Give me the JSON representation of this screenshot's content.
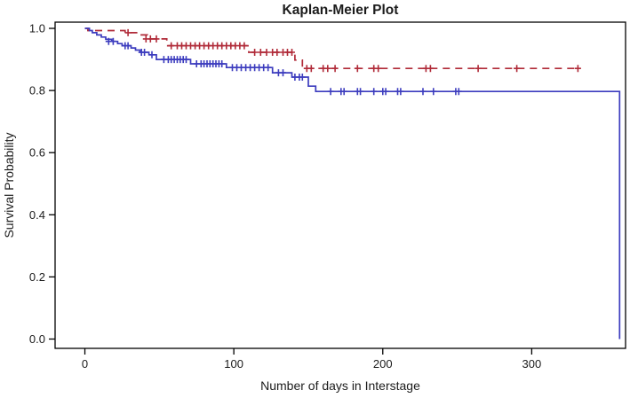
{
  "chart_data": {
    "type": "line",
    "subtype": "kaplan-meier-step",
    "title": "Kaplan-Meier Plot",
    "xlabel": "Number of days in Interstage",
    "ylabel": "Survival Probability",
    "xlim": [
      -20,
      363
    ],
    "ylim": [
      -0.03,
      1.02
    ],
    "xtick_values": [
      0,
      100,
      200,
      300
    ],
    "xtick_labels": [
      "0",
      "100",
      "200",
      "300"
    ],
    "ytick_values": [
      0.0,
      0.2,
      0.4,
      0.6,
      0.8,
      1.0
    ],
    "ytick_labels": [
      "0.0",
      "0.2",
      "0.4",
      "0.6",
      "0.8",
      "1.0"
    ],
    "grid": false,
    "legend": "none",
    "frame_color": "#000000",
    "series": [
      {
        "id": "group-red",
        "line_style": "dashed",
        "color": "#b02a38",
        "steps": [
          [
            0,
            1.0
          ],
          [
            2,
            0.993
          ],
          [
            27,
            0.986
          ],
          [
            36,
            0.979
          ],
          [
            42,
            0.966
          ],
          [
            55,
            0.944
          ],
          [
            110,
            0.923
          ],
          [
            141,
            0.898
          ],
          [
            146,
            0.871
          ],
          [
            331,
            0.871
          ]
        ],
        "censors": [
          [
            29,
            0.986
          ],
          [
            41,
            0.966
          ],
          [
            44,
            0.966
          ],
          [
            48,
            0.966
          ],
          [
            58,
            0.944
          ],
          [
            62,
            0.944
          ],
          [
            65,
            0.944
          ],
          [
            68,
            0.944
          ],
          [
            71,
            0.944
          ],
          [
            74,
            0.944
          ],
          [
            77,
            0.944
          ],
          [
            80,
            0.944
          ],
          [
            83,
            0.944
          ],
          [
            86,
            0.944
          ],
          [
            89,
            0.944
          ],
          [
            92,
            0.944
          ],
          [
            95,
            0.944
          ],
          [
            98,
            0.944
          ],
          [
            101,
            0.944
          ],
          [
            104,
            0.944
          ],
          [
            107,
            0.944
          ],
          [
            114,
            0.923
          ],
          [
            118,
            0.923
          ],
          [
            122,
            0.923
          ],
          [
            126,
            0.923
          ],
          [
            129,
            0.923
          ],
          [
            133,
            0.923
          ],
          [
            136,
            0.923
          ],
          [
            139,
            0.923
          ],
          [
            149,
            0.871
          ],
          [
            152,
            0.871
          ],
          [
            160,
            0.871
          ],
          [
            163,
            0.871
          ],
          [
            168,
            0.871
          ],
          [
            183,
            0.871
          ],
          [
            194,
            0.871
          ],
          [
            197,
            0.871
          ],
          [
            229,
            0.871
          ],
          [
            232,
            0.871
          ],
          [
            264,
            0.871
          ],
          [
            290,
            0.871
          ],
          [
            331,
            0.871
          ]
        ]
      },
      {
        "id": "group-blue",
        "line_style": "solid",
        "color": "#3c3cbe",
        "steps": [
          [
            0,
            1.0
          ],
          [
            3,
            0.993
          ],
          [
            5,
            0.986
          ],
          [
            8,
            0.979
          ],
          [
            11,
            0.972
          ],
          [
            14,
            0.965
          ],
          [
            18,
            0.958
          ],
          [
            22,
            0.951
          ],
          [
            25,
            0.944
          ],
          [
            31,
            0.937
          ],
          [
            34,
            0.93
          ],
          [
            37,
            0.923
          ],
          [
            43,
            0.915
          ],
          [
            48,
            0.9
          ],
          [
            71,
            0.886
          ],
          [
            95,
            0.874
          ],
          [
            126,
            0.857
          ],
          [
            139,
            0.843
          ],
          [
            150,
            0.814
          ],
          [
            155,
            0.797
          ],
          [
            359,
            0.797
          ],
          [
            359,
            0.0
          ]
        ],
        "censors": [
          [
            16,
            0.958
          ],
          [
            19,
            0.958
          ],
          [
            27,
            0.944
          ],
          [
            29,
            0.944
          ],
          [
            38,
            0.923
          ],
          [
            40,
            0.923
          ],
          [
            45,
            0.915
          ],
          [
            53,
            0.9
          ],
          [
            56,
            0.9
          ],
          [
            58,
            0.9
          ],
          [
            60,
            0.9
          ],
          [
            62,
            0.9
          ],
          [
            64,
            0.9
          ],
          [
            66,
            0.9
          ],
          [
            68,
            0.9
          ],
          [
            75,
            0.886
          ],
          [
            78,
            0.886
          ],
          [
            80,
            0.886
          ],
          [
            82,
            0.886
          ],
          [
            84,
            0.886
          ],
          [
            86,
            0.886
          ],
          [
            88,
            0.886
          ],
          [
            90,
            0.886
          ],
          [
            92,
            0.886
          ],
          [
            99,
            0.874
          ],
          [
            102,
            0.874
          ],
          [
            105,
            0.874
          ],
          [
            108,
            0.874
          ],
          [
            111,
            0.874
          ],
          [
            114,
            0.874
          ],
          [
            117,
            0.874
          ],
          [
            120,
            0.874
          ],
          [
            123,
            0.874
          ],
          [
            130,
            0.857
          ],
          [
            133,
            0.857
          ],
          [
            141,
            0.843
          ],
          [
            144,
            0.843
          ],
          [
            146,
            0.843
          ],
          [
            165,
            0.797
          ],
          [
            172,
            0.797
          ],
          [
            174,
            0.797
          ],
          [
            183,
            0.797
          ],
          [
            185,
            0.797
          ],
          [
            194,
            0.797
          ],
          [
            200,
            0.797
          ],
          [
            202,
            0.797
          ],
          [
            210,
            0.797
          ],
          [
            212,
            0.797
          ],
          [
            227,
            0.797
          ],
          [
            234,
            0.797
          ],
          [
            249,
            0.797
          ],
          [
            251,
            0.797
          ]
        ]
      }
    ]
  }
}
